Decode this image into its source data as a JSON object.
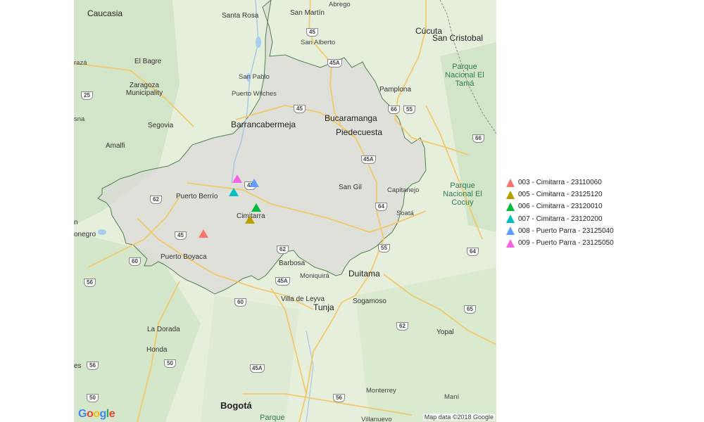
{
  "map": {
    "attribution": "Map data ©2018 Google",
    "logo": "Google",
    "logo_colors": [
      "#4285F4",
      "#EA4335",
      "#FBBC05",
      "#4285F4",
      "#34A853",
      "#EA4335"
    ],
    "places": [
      {
        "id": "caucasia",
        "label": "Caucasia",
        "class": "city"
      },
      {
        "id": "santa-rosa",
        "label": "Santa Rosa",
        "class": ""
      },
      {
        "id": "san-martin",
        "label": "San Martín",
        "class": ""
      },
      {
        "id": "abrego",
        "label": "Abrego",
        "class": "small"
      },
      {
        "id": "cucuta",
        "label": "Cúcuta",
        "class": "city"
      },
      {
        "id": "san-cristobal",
        "label": "San Cristobal",
        "class": "city"
      },
      {
        "id": "san-alberto",
        "label": "San Alberto",
        "class": "small"
      },
      {
        "id": "el-bagre",
        "label": "El Bagre",
        "class": ""
      },
      {
        "id": "zaragoza",
        "label": "Zaragoza Municipality",
        "class": ""
      },
      {
        "id": "san-pablo",
        "label": "San Pablo",
        "class": "small"
      },
      {
        "id": "puerto-wilches",
        "label": "Puerto Wilches",
        "class": "small"
      },
      {
        "id": "pamplona",
        "label": "Pamplona",
        "class": ""
      },
      {
        "id": "parque-tama",
        "label": "Parque Nacional El Tamá",
        "class": "park"
      },
      {
        "id": "segovia",
        "label": "Segovia",
        "class": ""
      },
      {
        "id": "barrancabermeja",
        "label": "Barrancabermeja",
        "class": "city"
      },
      {
        "id": "bucaramanga",
        "label": "Bucaramanga",
        "class": "city"
      },
      {
        "id": "piedecuesta",
        "label": "Piedecuesta",
        "class": "city"
      },
      {
        "id": "amalfi",
        "label": "Amalfi",
        "class": ""
      },
      {
        "id": "puerto-berrio",
        "label": "Puerto Berrío",
        "class": ""
      },
      {
        "id": "san-gil",
        "label": "San Gil",
        "class": ""
      },
      {
        "id": "capitanejo",
        "label": "Capitanejo",
        "class": "small"
      },
      {
        "id": "parque-cocuy",
        "label": "Parque Nacional El Cocuy",
        "class": "park"
      },
      {
        "id": "cimitarra",
        "label": "Cimitarra",
        "class": ""
      },
      {
        "id": "soata",
        "label": "Soatá",
        "class": "small"
      },
      {
        "id": "rionegro",
        "label": "onegro",
        "class": ""
      },
      {
        "id": "n-left",
        "label": "n",
        "class": ""
      },
      {
        "id": "puerto-boyaca",
        "label": "Puerto Boyaca",
        "class": ""
      },
      {
        "id": "barbosa",
        "label": "Barbosa",
        "class": ""
      },
      {
        "id": "moniquira",
        "label": "Moniquirá",
        "class": "small"
      },
      {
        "id": "duitama",
        "label": "Duitama",
        "class": "city"
      },
      {
        "id": "villa-de-leyva",
        "label": "Villa de Leyva",
        "class": ""
      },
      {
        "id": "tunja",
        "label": "Tunja",
        "class": "city"
      },
      {
        "id": "sogamoso",
        "label": "Sogamoso",
        "class": ""
      },
      {
        "id": "la-dorada",
        "label": "La Dorada",
        "class": ""
      },
      {
        "id": "yopal",
        "label": "Yopal",
        "class": ""
      },
      {
        "id": "honda",
        "label": "Honda",
        "class": ""
      },
      {
        "id": "es-left",
        "label": "es",
        "class": ""
      },
      {
        "id": "monterrey",
        "label": "Monterrey",
        "class": "small"
      },
      {
        "id": "mani",
        "label": "Maní",
        "class": "small"
      },
      {
        "id": "bogota",
        "label": "Bogotá",
        "class": "capital"
      },
      {
        "id": "parque-bottom",
        "label": "Parque",
        "class": "park"
      },
      {
        "id": "villanueva",
        "label": "Villanuevo",
        "class": "small"
      },
      {
        "id": "raza",
        "label": "razá",
        "class": "small"
      },
      {
        "id": "sna",
        "label": "sna",
        "class": "small"
      }
    ],
    "shields": [
      {
        "id": "r45-top",
        "label": "45"
      },
      {
        "id": "r45a-top",
        "label": "45A"
      },
      {
        "id": "r25",
        "label": "25"
      },
      {
        "id": "r66-a",
        "label": "66"
      },
      {
        "id": "r55-top",
        "label": "55"
      },
      {
        "id": "r45-mid",
        "label": "45"
      },
      {
        "id": "r66-b",
        "label": "66"
      },
      {
        "id": "r45a-mid",
        "label": "45A"
      },
      {
        "id": "r49",
        "label": "45"
      },
      {
        "id": "r62-left",
        "label": "62"
      },
      {
        "id": "r64-mid",
        "label": "64"
      },
      {
        "id": "r45-left",
        "label": "45"
      },
      {
        "id": "r62-mid",
        "label": "62"
      },
      {
        "id": "r55-mid",
        "label": "55"
      },
      {
        "id": "r60-left",
        "label": "60"
      },
      {
        "id": "r64-right",
        "label": "64"
      },
      {
        "id": "r56-left",
        "label": "56"
      },
      {
        "id": "r45a-bot",
        "label": "45A"
      },
      {
        "id": "r60-bot",
        "label": "60"
      },
      {
        "id": "r62-bot",
        "label": "62"
      },
      {
        "id": "r65",
        "label": "65"
      },
      {
        "id": "r50-left",
        "label": "50"
      },
      {
        "id": "r45a-low",
        "label": "45A"
      },
      {
        "id": "r56-bot",
        "label": "56"
      },
      {
        "id": "r50-bot",
        "label": "50"
      },
      {
        "id": "r56-low",
        "label": "56"
      }
    ]
  },
  "markers": [
    {
      "id": "003",
      "name": "003 - Cimitarra - 23110060",
      "color": "#F8766D"
    },
    {
      "id": "005",
      "name": "005 - Cimitarra - 23125120",
      "color": "#B79F00"
    },
    {
      "id": "006",
      "name": "006 - Cimitarra - 23120010",
      "color": "#00BA38"
    },
    {
      "id": "007",
      "name": "007 - Cimitarra - 23120200",
      "color": "#00BFC4"
    },
    {
      "id": "008",
      "name": "008 - Puerto Parra - 23125040",
      "color": "#619CFF"
    },
    {
      "id": "009",
      "name": "009 - Puerto Parra - 23125050",
      "color": "#F564E3"
    }
  ],
  "region_outline_color": "#1f5e1f",
  "legend": {
    "items": [
      "003 - Cimitarra - 23110060",
      "005 - Cimitarra - 23125120",
      "006 - Cimitarra - 23120010",
      "007 - Cimitarra - 23120200",
      "008 - Puerto Parra - 23125040",
      "009 - Puerto Parra - 23125050"
    ]
  }
}
